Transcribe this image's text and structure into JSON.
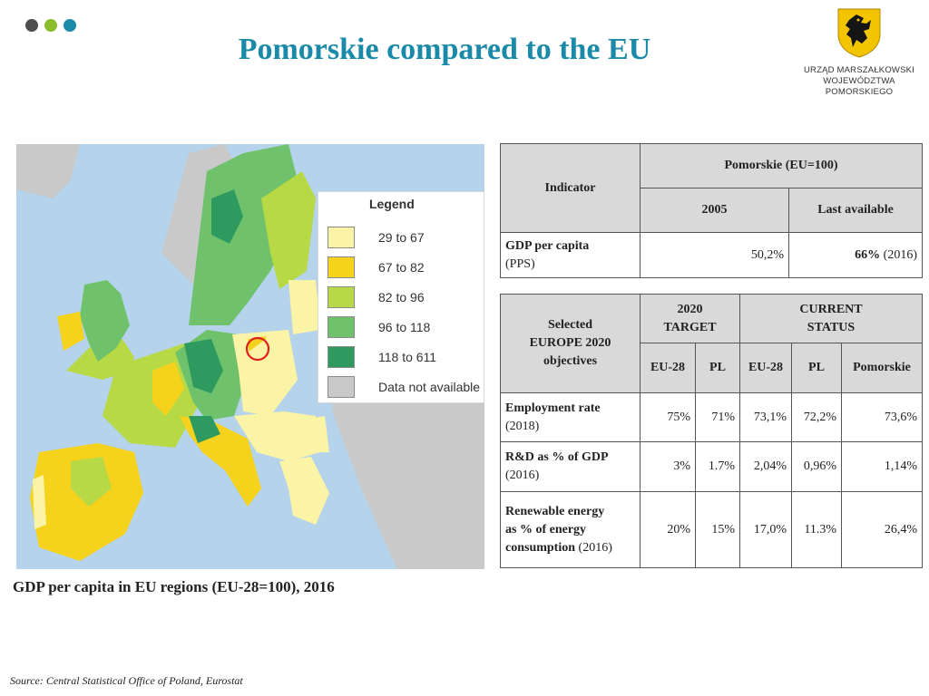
{
  "colors": {
    "title": "#1a8aa8",
    "dot_1": "#4d4d4d",
    "dot_2": "#8bbd2e",
    "dot_3": "#1a8aa8",
    "header_fill": "#d9d9d9",
    "marker": "#e02020"
  },
  "page": {
    "title": "Pomorskie compared to the EU",
    "map_caption": "GDP per capita in EU regions (EU-28=100), 2016",
    "source": "Source: Central Statistical Office of Poland, Eurostat"
  },
  "logo": {
    "line1": "URZĄD MARSZAŁKOWSKI",
    "line2": "WOJEWÓDZTWA POMORSKIEGO",
    "icon": "griffin-shield-icon"
  },
  "map": {
    "legend_title": "Legend",
    "legend": [
      {
        "label": "29  to   67",
        "color": "#fbf3a6"
      },
      {
        "label": "67  to   82",
        "color": "#f5d21c"
      },
      {
        "label": "82  to   96",
        "color": "#b7d945"
      },
      {
        "label": "96  to  118",
        "color": "#6fc26b"
      },
      {
        "label": "118  to  611",
        "color": "#2e9a60"
      },
      {
        "label": "Data not available",
        "color": "#c9c9c9"
      }
    ]
  },
  "table1": {
    "indicator_header": "Indicator",
    "group_header": "Pomorskie (EU=100)",
    "col_2005": "2005",
    "col_last": "Last available",
    "row": {
      "label_bold": "GDP per capita",
      "label_note": "(PPS)",
      "v2005": "50,2%",
      "last_bold": "66%",
      "last_year": " (2016)"
    }
  },
  "table2": {
    "objectives_header": [
      "Selected",
      "EUROPE 2020",
      "objectives"
    ],
    "target_header": [
      "2020",
      "TARGET"
    ],
    "status_header": [
      "CURRENT",
      "STATUS"
    ],
    "cols": [
      "EU-28",
      "PL",
      "EU-28",
      "PL",
      "Pomorskie"
    ],
    "rows": [
      {
        "label": [
          "Employment rate"
        ],
        "note": "(2018)",
        "values": [
          "75%",
          "71%",
          "73,1%",
          "72,2%",
          "73,6%"
        ]
      },
      {
        "label": [
          "R&D as % of GDP"
        ],
        "note": "(2016)",
        "values": [
          "3%",
          "1.7%",
          "2,04%",
          "0,96%",
          "1,14%"
        ]
      },
      {
        "label": [
          "Renewable energy",
          "as % of energy",
          "consumption"
        ],
        "note": " (2016)",
        "values": [
          "20%",
          "15%",
          "17,0%",
          "11.3%",
          "26,4%"
        ]
      }
    ]
  }
}
